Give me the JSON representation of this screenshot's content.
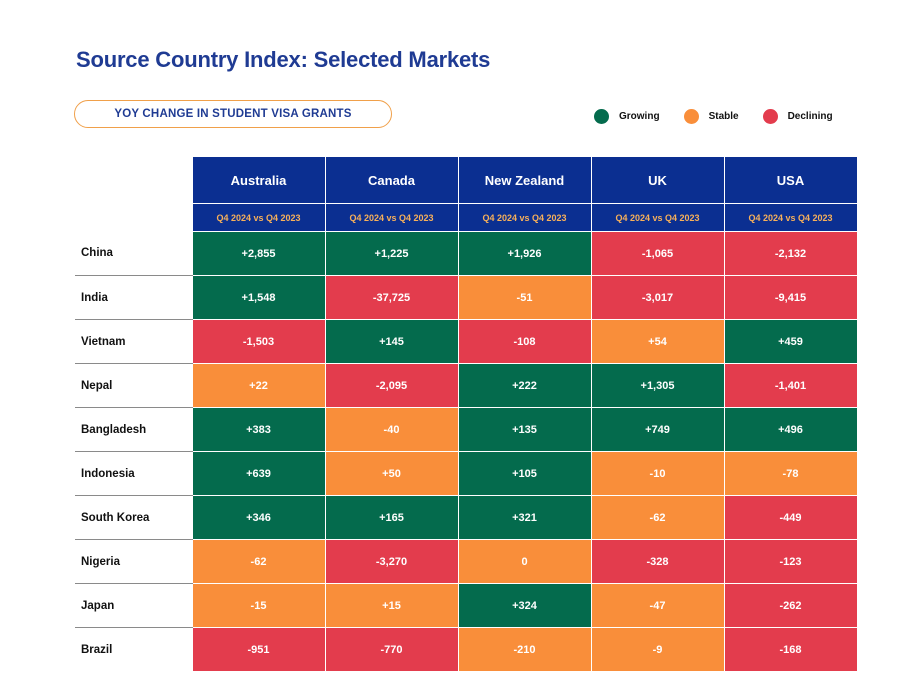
{
  "title": "Source Country Index: Selected Markets",
  "subtitle": "YOY CHANGE IN STUDENT VISA GRANTS",
  "legend": [
    {
      "key": "growing",
      "label": "Growing",
      "color": "#046b4d"
    },
    {
      "key": "stable",
      "label": "Stable",
      "color": "#f98e3a"
    },
    {
      "key": "declining",
      "label": "Declining",
      "color": "#e33c4d"
    }
  ],
  "chart_data": {
    "type": "table",
    "title": "Source Country Index: Selected Markets",
    "subtitle": "YOY CHANGE IN STUDENT VISA GRANTS",
    "columns": [
      "Australia",
      "Canada",
      "New Zealand",
      "UK",
      "USA"
    ],
    "period_label": "Q4 2024 vs Q4 2023",
    "rows": [
      {
        "country": "China",
        "values": [
          "+2,855",
          "+1,225",
          "+1,926",
          "-1,065",
          "-2,132"
        ],
        "status": [
          "growing",
          "growing",
          "growing",
          "declining",
          "declining"
        ]
      },
      {
        "country": "India",
        "values": [
          "+1,548",
          "-37,725",
          "-51",
          "-3,017",
          "-9,415"
        ],
        "status": [
          "growing",
          "declining",
          "stable",
          "declining",
          "declining"
        ]
      },
      {
        "country": "Vietnam",
        "values": [
          "-1,503",
          "+145",
          "-108",
          "+54",
          "+459"
        ],
        "status": [
          "declining",
          "growing",
          "declining",
          "stable",
          "growing"
        ]
      },
      {
        "country": "Nepal",
        "values": [
          "+22",
          "-2,095",
          "+222",
          "+1,305",
          "-1,401"
        ],
        "status": [
          "stable",
          "declining",
          "growing",
          "growing",
          "declining"
        ]
      },
      {
        "country": "Bangladesh",
        "values": [
          "+383",
          "-40",
          "+135",
          "+749",
          "+496"
        ],
        "status": [
          "growing",
          "stable",
          "growing",
          "growing",
          "growing"
        ]
      },
      {
        "country": "Indonesia",
        "values": [
          "+639",
          "+50",
          "+105",
          "-10",
          "-78"
        ],
        "status": [
          "growing",
          "stable",
          "growing",
          "stable",
          "stable"
        ]
      },
      {
        "country": "South Korea",
        "values": [
          "+346",
          "+165",
          "+321",
          "-62",
          "-449"
        ],
        "status": [
          "growing",
          "growing",
          "growing",
          "stable",
          "declining"
        ]
      },
      {
        "country": "Nigeria",
        "values": [
          "-62",
          "-3,270",
          "0",
          "-328",
          "-123"
        ],
        "status": [
          "stable",
          "declining",
          "stable",
          "declining",
          "declining"
        ]
      },
      {
        "country": "Japan",
        "values": [
          "-15",
          "+15",
          "+324",
          "-47",
          "-262"
        ],
        "status": [
          "stable",
          "stable",
          "growing",
          "stable",
          "declining"
        ]
      },
      {
        "country": "Brazil",
        "values": [
          "-951",
          "-770",
          "-210",
          "-9",
          "-168"
        ],
        "status": [
          "declining",
          "declining",
          "stable",
          "stable",
          "declining"
        ]
      }
    ]
  }
}
